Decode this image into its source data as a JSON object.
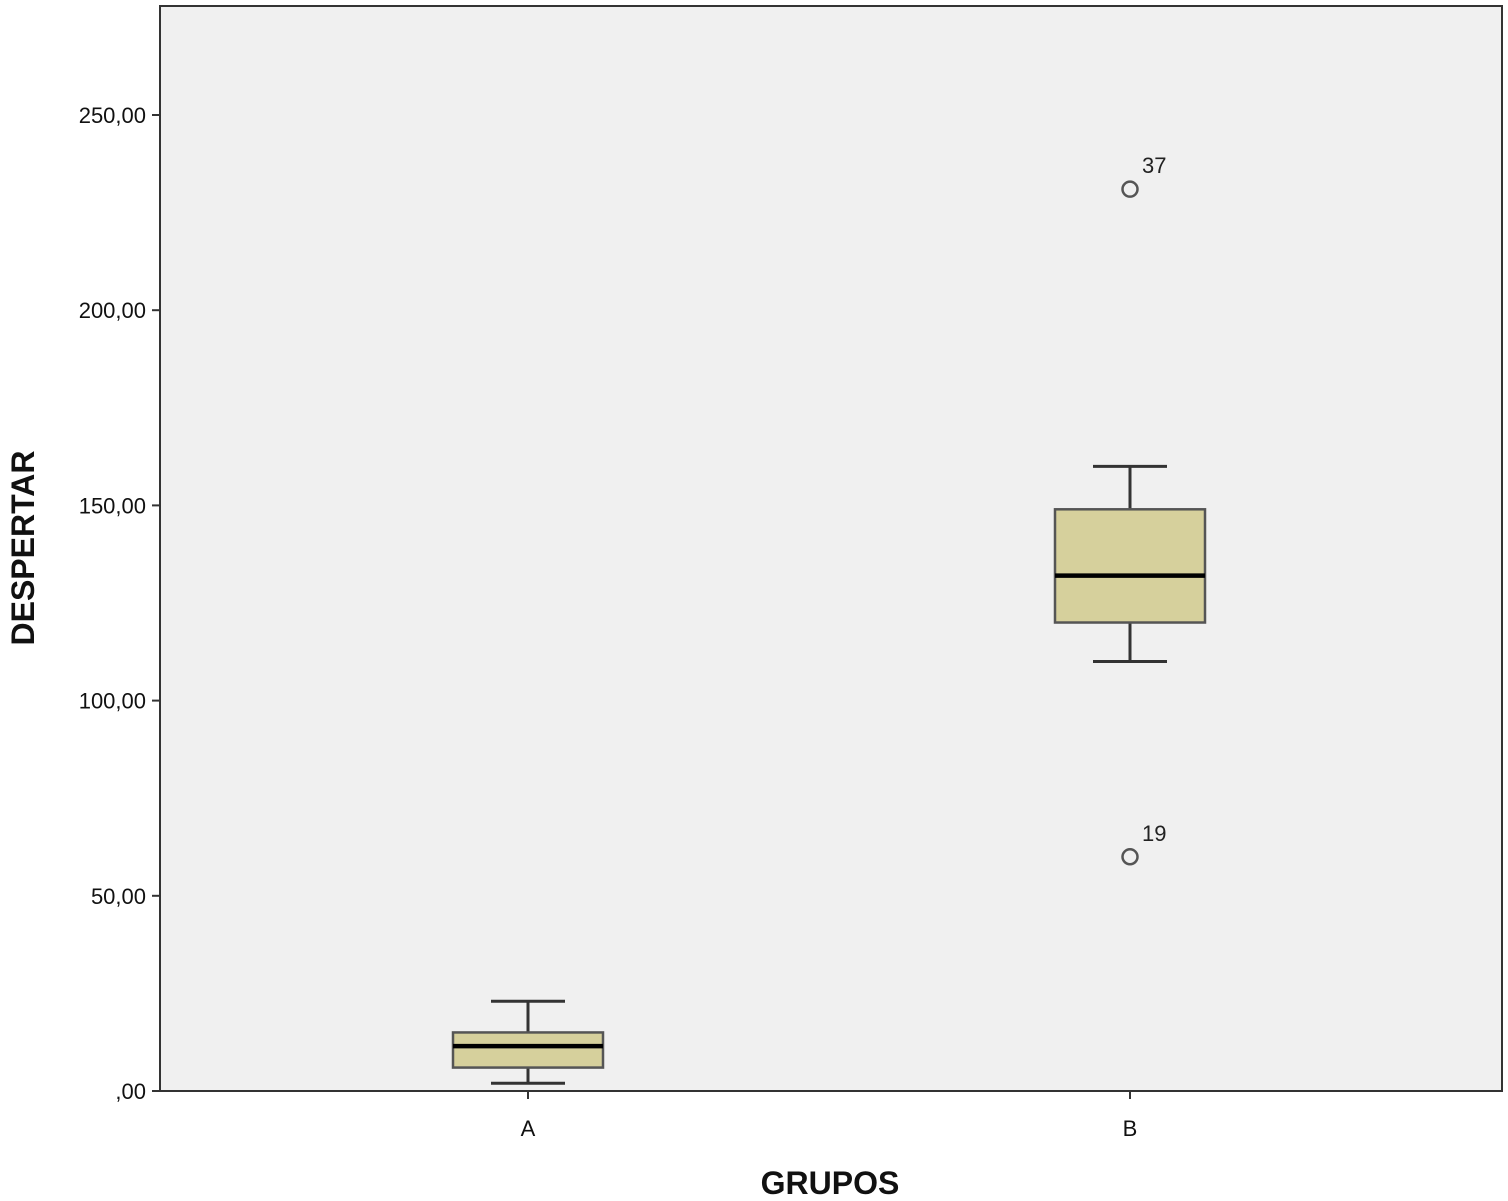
{
  "chart_data": {
    "type": "box",
    "xlabel": "GRUPOS",
    "ylabel": "DESPERTAR",
    "ylim": [
      0,
      278
    ],
    "yticks": [
      0,
      50,
      100,
      150,
      200,
      250
    ],
    "ytick_labels": [
      ",00",
      "50,00",
      "100,00",
      "150,00",
      "200,00",
      "250,00"
    ],
    "categories": [
      "A",
      "B"
    ],
    "boxes": [
      {
        "category": "A",
        "whisker_low": 2,
        "q1": 6,
        "median": 11.5,
        "q3": 15,
        "whisker_high": 23,
        "outliers": []
      },
      {
        "category": "B",
        "whisker_low": 110,
        "q1": 120,
        "median": 132,
        "q3": 149,
        "whisker_high": 160,
        "outliers": [
          {
            "value": 60,
            "label": "19"
          },
          {
            "value": 231,
            "label": "37"
          }
        ]
      }
    ],
    "grid": false,
    "colors": {
      "plot_background": "#f0f0f0",
      "box_fill": "#d6d09c",
      "box_stroke": "#555555",
      "median": "#000000",
      "whisker": "#333333",
      "outlier_stroke": "#555555",
      "axis": "#333333"
    }
  }
}
